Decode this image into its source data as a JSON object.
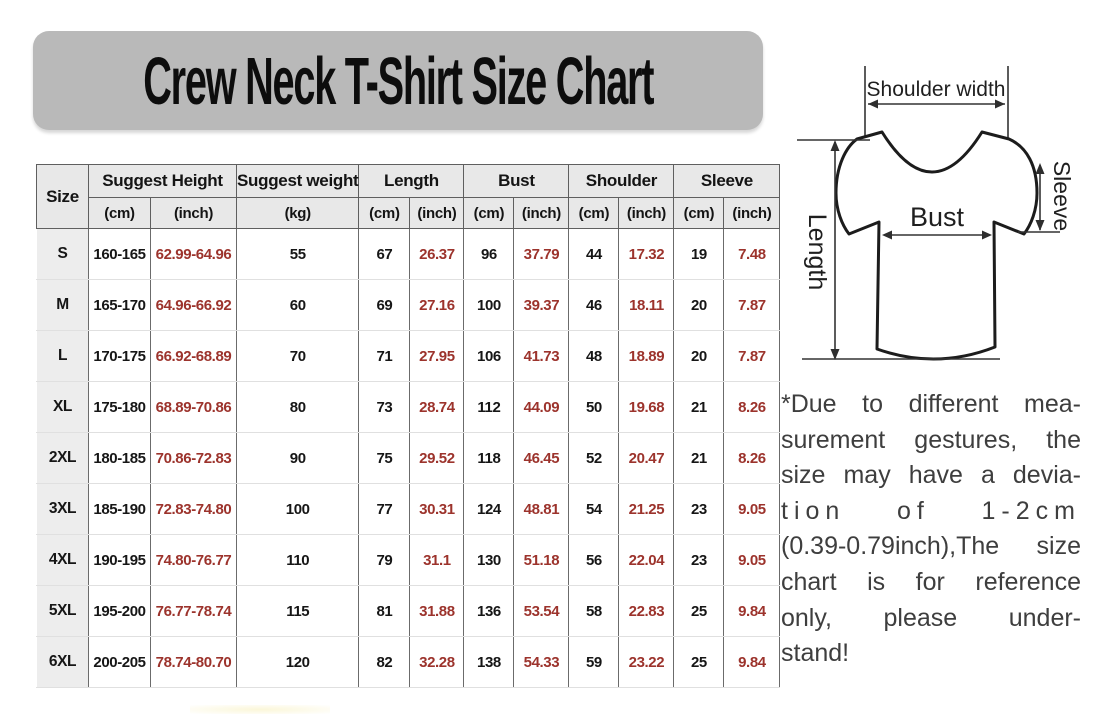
{
  "title": "Crew Neck T-Shirt Size Chart",
  "table": {
    "size_label": "Size",
    "groups": [
      {
        "label": "Suggest Height",
        "span": 2
      },
      {
        "label": "Suggest weight",
        "span": 1
      },
      {
        "label": "Length",
        "span": 2
      },
      {
        "label": "Bust",
        "span": 2
      },
      {
        "label": "Shoulder",
        "span": 2
      },
      {
        "label": "Sleeve",
        "span": 2
      }
    ],
    "units": [
      {
        "label": "(cm)",
        "red": false
      },
      {
        "label": "(inch)",
        "red": true
      },
      {
        "label": "(kg)",
        "red": false
      },
      {
        "label": "(cm)",
        "red": false
      },
      {
        "label": "(inch)",
        "red": true
      },
      {
        "label": "(cm)",
        "red": false
      },
      {
        "label": "(inch)",
        "red": true
      },
      {
        "label": "(cm)",
        "red": false
      },
      {
        "label": "(inch)",
        "red": true
      },
      {
        "label": "(cm)",
        "red": false
      },
      {
        "label": "(inch)",
        "red": true
      }
    ],
    "rows": [
      [
        "S",
        "160-165",
        "62.99-64.96",
        "55",
        "67",
        "26.37",
        "96",
        "37.79",
        "44",
        "17.32",
        "19",
        "7.48"
      ],
      [
        "M",
        "165-170",
        "64.96-66.92",
        "60",
        "69",
        "27.16",
        "100",
        "39.37",
        "46",
        "18.11",
        "20",
        "7.87"
      ],
      [
        "L",
        "170-175",
        "66.92-68.89",
        "70",
        "71",
        "27.95",
        "106",
        "41.73",
        "48",
        "18.89",
        "20",
        "7.87"
      ],
      [
        "XL",
        "175-180",
        "68.89-70.86",
        "80",
        "73",
        "28.74",
        "112",
        "44.09",
        "50",
        "19.68",
        "21",
        "8.26"
      ],
      [
        "2XL",
        "180-185",
        "70.86-72.83",
        "90",
        "75",
        "29.52",
        "118",
        "46.45",
        "52",
        "20.47",
        "21",
        "8.26"
      ],
      [
        "3XL",
        "185-190",
        "72.83-74.80",
        "100",
        "77",
        "30.31",
        "124",
        "48.81",
        "54",
        "21.25",
        "23",
        "9.05"
      ],
      [
        "4XL",
        "190-195",
        "74.80-76.77",
        "110",
        "79",
        "31.1",
        "130",
        "51.18",
        "56",
        "22.04",
        "23",
        "9.05"
      ],
      [
        "5XL",
        "195-200",
        "76.77-78.74",
        "115",
        "81",
        "31.88",
        "136",
        "53.54",
        "58",
        "22.83",
        "25",
        "9.84"
      ],
      [
        "6XL",
        "200-205",
        "78.74-80.70",
        "120",
        "82",
        "32.28",
        "138",
        "54.33",
        "59",
        "23.22",
        "25",
        "9.84"
      ]
    ]
  },
  "diagram": {
    "shoulder_width_label": "Shoulder width",
    "sleeve_label": "Sleeve",
    "bust_label": "Bust",
    "length_label": "Length"
  },
  "note": {
    "lines": [
      "*Due to different mea-",
      "surement gestures, the",
      "size may have a devia-",
      "tion of 1-2cm",
      "(0.39-0.79inch),The size",
      "chart is for reference",
      "only, please under-",
      "stand!"
    ]
  },
  "colors": {
    "banner_gray": "#b9b9b9",
    "header_bg": "#e8e8e8",
    "size_bg": "#ededed",
    "border_dark": "#5f5f5f",
    "border_light": "#e0e0e0",
    "red_header": "#ad3d35",
    "red_value": "#9c332c",
    "note_color": "#3e3e3e"
  }
}
